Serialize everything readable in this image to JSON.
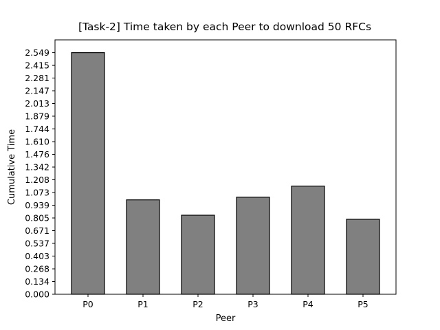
{
  "chart_data": {
    "type": "bar",
    "title": "[Task-2] Time taken by each Peer to download 50 RFCs",
    "xlabel": "Peer",
    "ylabel": "Cumulative Time",
    "categories": [
      "P0",
      "P1",
      "P2",
      "P3",
      "P4",
      "P5"
    ],
    "values": [
      2.549,
      0.996,
      0.834,
      1.024,
      1.141,
      0.791
    ],
    "yticks": [
      "0.000",
      "0.134",
      "0.268",
      "0.403",
      "0.537",
      "0.671",
      "0.805",
      "0.939",
      "1.073",
      "1.208",
      "1.342",
      "1.476",
      "1.610",
      "1.744",
      "1.879",
      "2.013",
      "2.147",
      "2.281",
      "2.415",
      "2.549"
    ],
    "ylim": [
      0,
      2.684
    ],
    "bar_color": "#808080",
    "grid": false
  }
}
